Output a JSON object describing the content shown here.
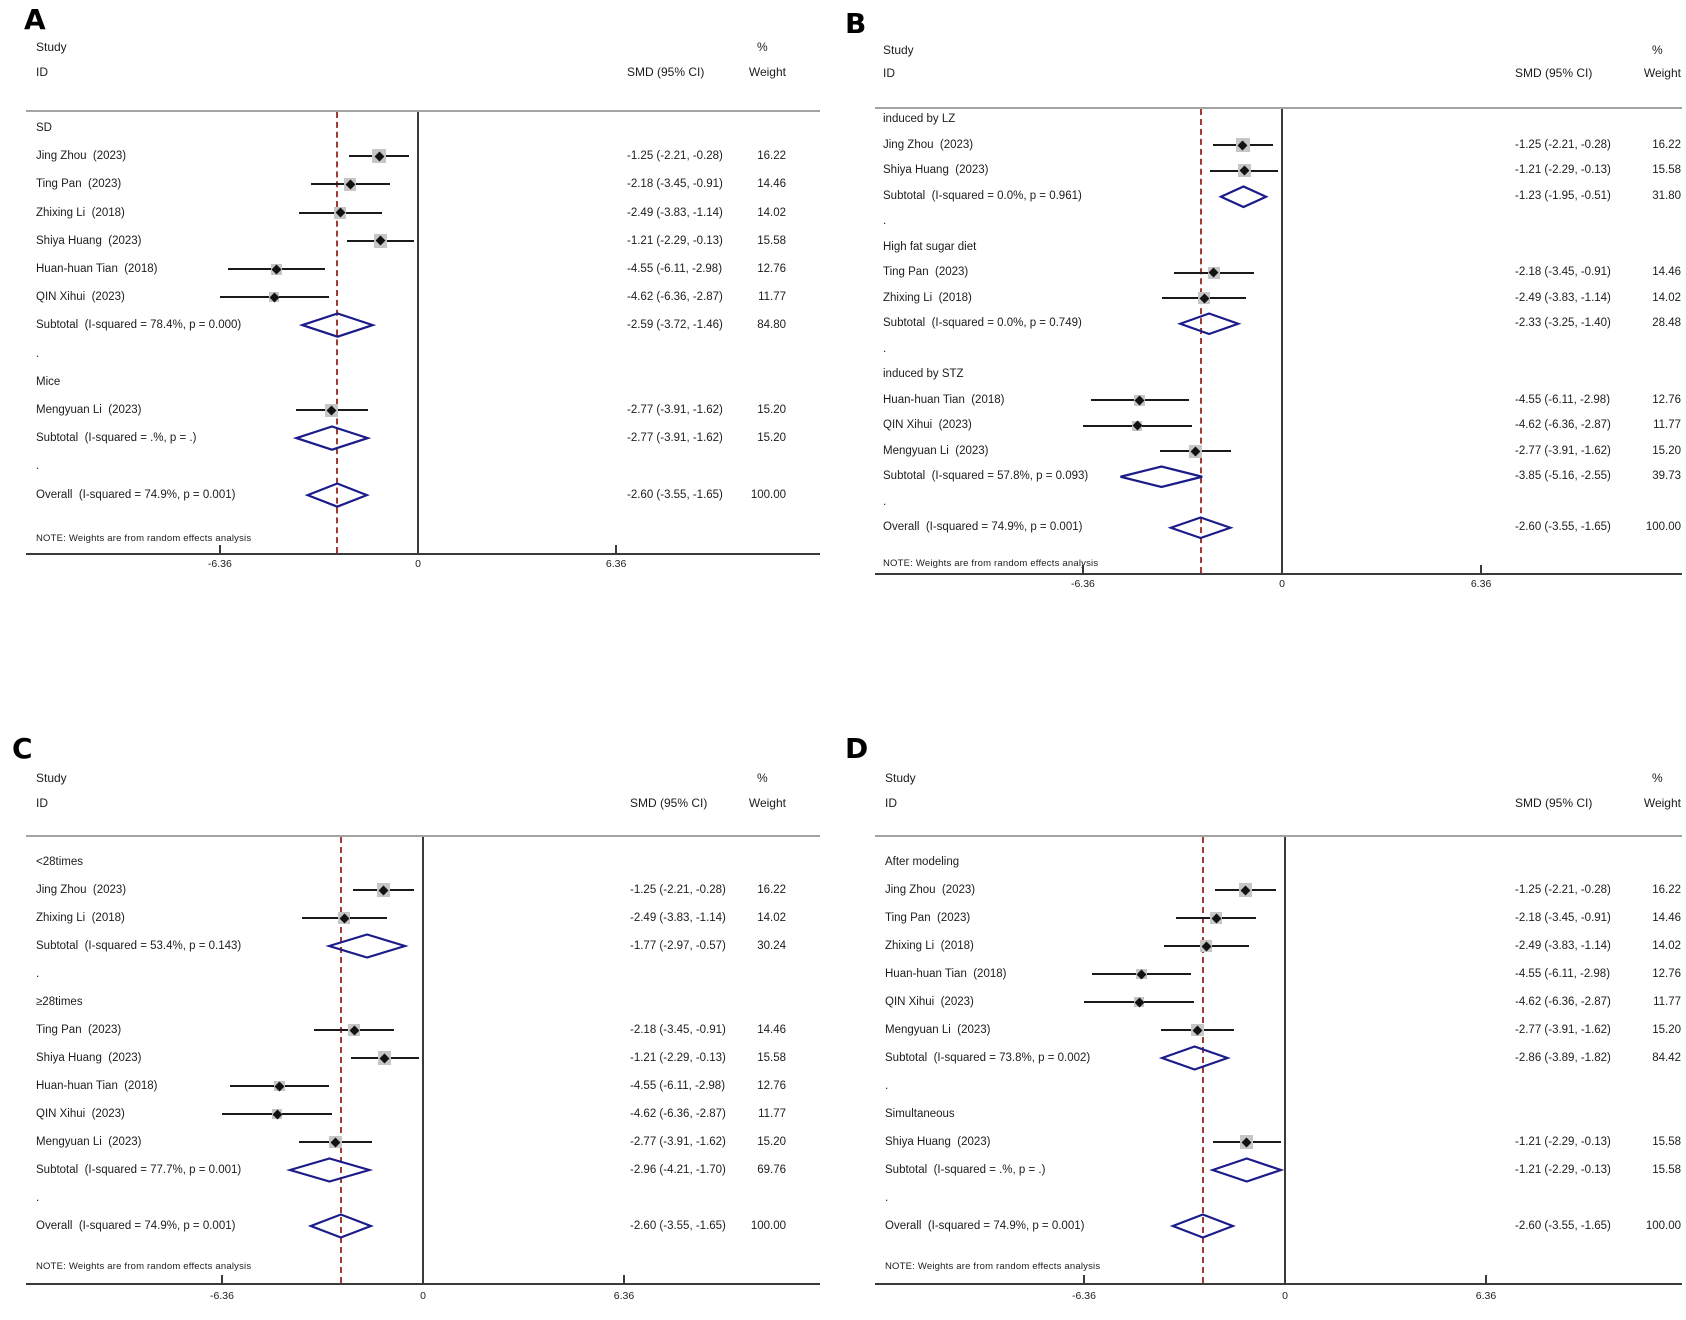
{
  "figure": {
    "col_headers": {
      "study": "Study",
      "id": "ID",
      "percent": "%",
      "smd": "SMD (95% CI)",
      "weight": "Weight"
    },
    "note": "NOTE: Weights are from random effects analysis"
  },
  "colors": {
    "diamond": "#1c1b8a",
    "dashed_line": "#a23a36",
    "ci_line": "#1a1a1a",
    "axis_line": "#3a3a3a",
    "separator": "#a3a3a3",
    "weight_box": "#c6c6c6",
    "text": "#1c1c1c",
    "background": "#ffffff"
  },
  "chart_data": [
    {
      "type": "forest",
      "panel": "A",
      "effect_measure": "SMD",
      "x_ticks": [
        -6.36,
        0,
        6.36
      ],
      "x_tick_labels": [
        "-6.36",
        "0",
        "6.36"
      ],
      "null_line_x": 0,
      "dashed_line_x": -2.6,
      "rows": [
        {
          "kind": "group",
          "label": "SD"
        },
        {
          "kind": "study",
          "label": "Jing Zhou  (2023)",
          "est": -1.25,
          "lo": -2.21,
          "hi": -0.28,
          "smd": "-1.25 (-2.21, -0.28)",
          "weight": "16.22",
          "weight_pct": 16.22
        },
        {
          "kind": "study",
          "label": "Ting Pan  (2023)",
          "est": -2.18,
          "lo": -3.45,
          "hi": -0.91,
          "smd": "-2.18 (-3.45, -0.91)",
          "weight": "14.46",
          "weight_pct": 14.46
        },
        {
          "kind": "study",
          "label": "Zhixing Li  (2018)",
          "est": -2.49,
          "lo": -3.83,
          "hi": -1.14,
          "smd": "-2.49 (-3.83, -1.14)",
          "weight": "14.02",
          "weight_pct": 14.02
        },
        {
          "kind": "study",
          "label": "Shiya Huang  (2023)",
          "est": -1.21,
          "lo": -2.29,
          "hi": -0.13,
          "smd": "-1.21 (-2.29, -0.13)",
          "weight": "15.58",
          "weight_pct": 15.58
        },
        {
          "kind": "study",
          "label": "Huan-huan Tian  (2018)",
          "est": -4.55,
          "lo": -6.11,
          "hi": -2.98,
          "smd": "-4.55 (-6.11, -2.98)",
          "weight": "12.76",
          "weight_pct": 12.76
        },
        {
          "kind": "study",
          "label": "QIN Xihui  (2023)",
          "est": -4.62,
          "lo": -6.36,
          "hi": -2.87,
          "smd": "-4.62 (-6.36, -2.87)",
          "weight": "11.77",
          "weight_pct": 11.77
        },
        {
          "kind": "subtotal",
          "label": "Subtotal  (I-squared = 78.4%, p = 0.000)",
          "est": -2.59,
          "lo": -3.72,
          "hi": -1.46,
          "smd": "-2.59 (-3.72, -1.46)",
          "weight": "84.80"
        },
        {
          "kind": "spacer",
          "label": "."
        },
        {
          "kind": "group",
          "label": "Mice"
        },
        {
          "kind": "study",
          "label": "Mengyuan Li  (2023)",
          "est": -2.77,
          "lo": -3.91,
          "hi": -1.62,
          "smd": "-2.77 (-3.91, -1.62)",
          "weight": "15.20",
          "weight_pct": 15.2
        },
        {
          "kind": "subtotal",
          "label": "Subtotal  (I-squared = .%, p = .)",
          "est": -2.77,
          "lo": -3.91,
          "hi": -1.62,
          "smd": "-2.77 (-3.91, -1.62)",
          "weight": "15.20"
        },
        {
          "kind": "spacer",
          "label": "."
        },
        {
          "kind": "overall",
          "label": "Overall  (I-squared = 74.9%, p = 0.001)",
          "est": -2.6,
          "lo": -3.55,
          "hi": -1.65,
          "smd": "-2.60 (-3.55, -1.65)",
          "weight": "100.00"
        }
      ]
    },
    {
      "type": "forest",
      "panel": "B",
      "effect_measure": "SMD",
      "x_ticks": [
        -6.36,
        0,
        6.36
      ],
      "x_tick_labels": [
        "-6.36",
        "0",
        "6.36"
      ],
      "null_line_x": 0,
      "dashed_line_x": -2.6,
      "rows": [
        {
          "kind": "group",
          "label": "induced by LZ"
        },
        {
          "kind": "study",
          "label": "Jing Zhou  (2023)",
          "est": -1.25,
          "lo": -2.21,
          "hi": -0.28,
          "smd": "-1.25 (-2.21, -0.28)",
          "weight": "16.22",
          "weight_pct": 16.22
        },
        {
          "kind": "study",
          "label": "Shiya Huang  (2023)",
          "est": -1.21,
          "lo": -2.29,
          "hi": -0.13,
          "smd": "-1.21 (-2.29, -0.13)",
          "weight": "15.58",
          "weight_pct": 15.58
        },
        {
          "kind": "subtotal",
          "label": "Subtotal  (I-squared = 0.0%, p = 0.961)",
          "est": -1.23,
          "lo": -1.95,
          "hi": -0.51,
          "smd": "-1.23 (-1.95, -0.51)",
          "weight": "31.80"
        },
        {
          "kind": "spacer",
          "label": "."
        },
        {
          "kind": "group",
          "label": "High fat sugar diet"
        },
        {
          "kind": "study",
          "label": "Ting Pan  (2023)",
          "est": -2.18,
          "lo": -3.45,
          "hi": -0.91,
          "smd": "-2.18 (-3.45, -0.91)",
          "weight": "14.46",
          "weight_pct": 14.46
        },
        {
          "kind": "study",
          "label": "Zhixing Li  (2018)",
          "est": -2.49,
          "lo": -3.83,
          "hi": -1.14,
          "smd": "-2.49 (-3.83, -1.14)",
          "weight": "14.02",
          "weight_pct": 14.02
        },
        {
          "kind": "subtotal",
          "label": "Subtotal  (I-squared = 0.0%, p = 0.749)",
          "est": -2.33,
          "lo": -3.25,
          "hi": -1.4,
          "smd": "-2.33 (-3.25, -1.40)",
          "weight": "28.48"
        },
        {
          "kind": "spacer",
          "label": "."
        },
        {
          "kind": "group",
          "label": "induced by STZ"
        },
        {
          "kind": "study",
          "label": "Huan-huan Tian  (2018)",
          "est": -4.55,
          "lo": -6.11,
          "hi": -2.98,
          "smd": "-4.55 (-6.11, -2.98)",
          "weight": "12.76",
          "weight_pct": 12.76
        },
        {
          "kind": "study",
          "label": "QIN Xihui  (2023)",
          "est": -4.62,
          "lo": -6.36,
          "hi": -2.87,
          "smd": "-4.62 (-6.36, -2.87)",
          "weight": "11.77",
          "weight_pct": 11.77
        },
        {
          "kind": "study",
          "label": "Mengyuan Li  (2023)",
          "est": -2.77,
          "lo": -3.91,
          "hi": -1.62,
          "smd": "-2.77 (-3.91, -1.62)",
          "weight": "15.20",
          "weight_pct": 15.2
        },
        {
          "kind": "subtotal",
          "label": "Subtotal  (I-squared = 57.8%, p = 0.093)",
          "est": -3.85,
          "lo": -5.16,
          "hi": -2.55,
          "smd": "-3.85 (-5.16, -2.55)",
          "weight": "39.73"
        },
        {
          "kind": "spacer",
          "label": "."
        },
        {
          "kind": "overall",
          "label": "Overall  (I-squared = 74.9%, p = 0.001)",
          "est": -2.6,
          "lo": -3.55,
          "hi": -1.65,
          "smd": "-2.60 (-3.55, -1.65)",
          "weight": "100.00"
        }
      ]
    },
    {
      "type": "forest",
      "panel": "C",
      "effect_measure": "SMD",
      "x_ticks": [
        -6.36,
        0,
        6.36
      ],
      "x_tick_labels": [
        "-6.36",
        "0",
        "6.36"
      ],
      "null_line_x": 0,
      "dashed_line_x": -2.6,
      "rows": [
        {
          "kind": "group",
          "label": "<28times"
        },
        {
          "kind": "study",
          "label": "Jing Zhou  (2023)",
          "est": -1.25,
          "lo": -2.21,
          "hi": -0.28,
          "smd": "-1.25 (-2.21, -0.28)",
          "weight": "16.22",
          "weight_pct": 16.22
        },
        {
          "kind": "study",
          "label": "Zhixing Li  (2018)",
          "est": -2.49,
          "lo": -3.83,
          "hi": -1.14,
          "smd": "-2.49 (-3.83, -1.14)",
          "weight": "14.02",
          "weight_pct": 14.02
        },
        {
          "kind": "subtotal",
          "label": "Subtotal  (I-squared = 53.4%, p = 0.143)",
          "est": -1.77,
          "lo": -2.97,
          "hi": -0.57,
          "smd": "-1.77 (-2.97, -0.57)",
          "weight": "30.24"
        },
        {
          "kind": "spacer",
          "label": "."
        },
        {
          "kind": "group",
          "label": "≥28times"
        },
        {
          "kind": "study",
          "label": "Ting Pan  (2023)",
          "est": -2.18,
          "lo": -3.45,
          "hi": -0.91,
          "smd": "-2.18 (-3.45, -0.91)",
          "weight": "14.46",
          "weight_pct": 14.46
        },
        {
          "kind": "study",
          "label": "Shiya Huang  (2023)",
          "est": -1.21,
          "lo": -2.29,
          "hi": -0.13,
          "smd": "-1.21 (-2.29, -0.13)",
          "weight": "15.58",
          "weight_pct": 15.58
        },
        {
          "kind": "study",
          "label": "Huan-huan Tian  (2018)",
          "est": -4.55,
          "lo": -6.11,
          "hi": -2.98,
          "smd": "-4.55 (-6.11, -2.98)",
          "weight": "12.76",
          "weight_pct": 12.76
        },
        {
          "kind": "study",
          "label": "QIN Xihui  (2023)",
          "est": -4.62,
          "lo": -6.36,
          "hi": -2.87,
          "smd": "-4.62 (-6.36, -2.87)",
          "weight": "11.77",
          "weight_pct": 11.77
        },
        {
          "kind": "study",
          "label": "Mengyuan Li  (2023)",
          "est": -2.77,
          "lo": -3.91,
          "hi": -1.62,
          "smd": "-2.77 (-3.91, -1.62)",
          "weight": "15.20",
          "weight_pct": 15.2
        },
        {
          "kind": "subtotal",
          "label": "Subtotal  (I-squared = 77.7%, p = 0.001)",
          "est": -2.96,
          "lo": -4.21,
          "hi": -1.7,
          "smd": "-2.96 (-4.21, -1.70)",
          "weight": "69.76"
        },
        {
          "kind": "spacer",
          "label": "."
        },
        {
          "kind": "overall",
          "label": "Overall  (I-squared = 74.9%, p = 0.001)",
          "est": -2.6,
          "lo": -3.55,
          "hi": -1.65,
          "smd": "-2.60 (-3.55, -1.65)",
          "weight": "100.00"
        }
      ]
    },
    {
      "type": "forest",
      "panel": "D",
      "effect_measure": "SMD",
      "x_ticks": [
        -6.36,
        0,
        6.36
      ],
      "x_tick_labels": [
        "-6.36",
        "0",
        "6.36"
      ],
      "null_line_x": 0,
      "dashed_line_x": -2.6,
      "rows": [
        {
          "kind": "group",
          "label": "After modeling"
        },
        {
          "kind": "study",
          "label": "Jing Zhou  (2023)",
          "est": -1.25,
          "lo": -2.21,
          "hi": -0.28,
          "smd": "-1.25 (-2.21, -0.28)",
          "weight": "16.22",
          "weight_pct": 16.22
        },
        {
          "kind": "study",
          "label": "Ting Pan  (2023)",
          "est": -2.18,
          "lo": -3.45,
          "hi": -0.91,
          "smd": "-2.18 (-3.45, -0.91)",
          "weight": "14.46",
          "weight_pct": 14.46
        },
        {
          "kind": "study",
          "label": "Zhixing Li  (2018)",
          "est": -2.49,
          "lo": -3.83,
          "hi": -1.14,
          "smd": "-2.49 (-3.83, -1.14)",
          "weight": "14.02",
          "weight_pct": 14.02
        },
        {
          "kind": "study",
          "label": "Huan-huan Tian  (2018)",
          "est": -4.55,
          "lo": -6.11,
          "hi": -2.98,
          "smd": "-4.55 (-6.11, -2.98)",
          "weight": "12.76",
          "weight_pct": 12.76
        },
        {
          "kind": "study",
          "label": "QIN Xihui  (2023)",
          "est": -4.62,
          "lo": -6.36,
          "hi": -2.87,
          "smd": "-4.62 (-6.36, -2.87)",
          "weight": "11.77",
          "weight_pct": 11.77
        },
        {
          "kind": "study",
          "label": "Mengyuan Li  (2023)",
          "est": -2.77,
          "lo": -3.91,
          "hi": -1.62,
          "smd": "-2.77 (-3.91, -1.62)",
          "weight": "15.20",
          "weight_pct": 15.2
        },
        {
          "kind": "subtotal",
          "label": "Subtotal  (I-squared = 73.8%, p = 0.002)",
          "est": -2.86,
          "lo": -3.89,
          "hi": -1.82,
          "smd": "-2.86 (-3.89, -1.82)",
          "weight": "84.42"
        },
        {
          "kind": "spacer",
          "label": "."
        },
        {
          "kind": "group",
          "label": "Simultaneous"
        },
        {
          "kind": "study",
          "label": "Shiya Huang  (2023)",
          "est": -1.21,
          "lo": -2.29,
          "hi": -0.13,
          "smd": "-1.21 (-2.29, -0.13)",
          "weight": "15.58",
          "weight_pct": 15.58
        },
        {
          "kind": "subtotal",
          "label": "Subtotal  (I-squared = .%, p = .)",
          "est": -1.21,
          "lo": -2.29,
          "hi": -0.13,
          "smd": "-1.21 (-2.29, -0.13)",
          "weight": "15.58"
        },
        {
          "kind": "spacer",
          "label": "."
        },
        {
          "kind": "overall",
          "label": "Overall  (I-squared = 74.9%, p = 0.001)",
          "est": -2.6,
          "lo": -3.55,
          "hi": -1.65,
          "smd": "-2.60 (-3.55, -1.65)",
          "weight": "100.00"
        }
      ]
    }
  ]
}
